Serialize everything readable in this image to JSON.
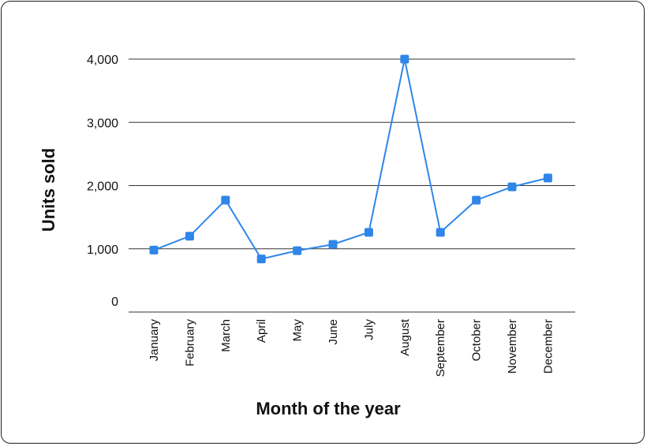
{
  "chart_data": {
    "type": "line",
    "categories": [
      "January",
      "February",
      "March",
      "April",
      "May",
      "June",
      "July",
      "August",
      "September",
      "October",
      "November",
      "December"
    ],
    "series": [
      {
        "values": [
          980,
          1200,
          1770,
          840,
          970,
          1070,
          1260,
          4000,
          1260,
          1770,
          1980,
          2120
        ]
      }
    ],
    "y_ticks": [
      {
        "value": 4000,
        "label": "4,000"
      },
      {
        "value": 3000,
        "label": "3,000"
      },
      {
        "value": 2000,
        "label": "2,000"
      },
      {
        "value": 1000,
        "label": "1,000"
      },
      {
        "value": 0,
        "label": "0"
      }
    ],
    "ylim": [
      0,
      4000
    ],
    "xlabel": "Month of the year",
    "ylabel": "Units sold",
    "grid": true,
    "series_color": "#2f86e8"
  }
}
